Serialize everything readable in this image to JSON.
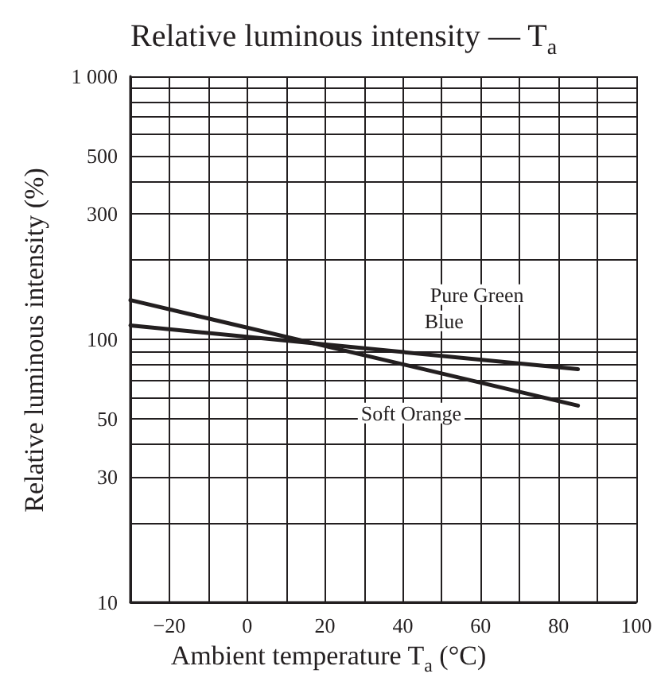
{
  "chart_data": {
    "type": "line",
    "title": "Relative luminous intensity — T$_{a}$",
    "xlabel": "Ambient temperature  T$_{a}$ (°C)",
    "ylabel": "Relative luminous intensity (%)",
    "log": "y",
    "grid": true,
    "marker": "none",
    "line_style": "solid",
    "xlim": [
      -30,
      100
    ],
    "ylim": [
      10,
      1000
    ],
    "xticks": [
      {
        "value": -30,
        "label": null
      },
      {
        "value": -20,
        "label": "−20"
      },
      {
        "value": -10,
        "label": null
      },
      0,
      {
        "value": 10,
        "label": null
      },
      20,
      {
        "value": 30,
        "label": null
      },
      40,
      {
        "value": 50,
        "label": null
      },
      60,
      {
        "value": 70,
        "label": null
      },
      80,
      {
        "value": 90,
        "label": null
      },
      100
    ],
    "yticks": [
      10,
      {
        "value": 20,
        "label": null
      },
      30,
      {
        "value": 40,
        "label": null
      },
      50,
      {
        "value": 60,
        "label": null
      },
      {
        "value": 70,
        "label": null
      },
      {
        "value": 80,
        "label": null
      },
      {
        "value": 90,
        "label": null
      },
      100,
      {
        "value": 200,
        "label": null
      },
      300,
      {
        "value": 400,
        "label": null
      },
      500,
      {
        "value": 600,
        "label": null
      },
      {
        "value": 700,
        "label": null
      },
      {
        "value": 800,
        "label": null
      },
      {
        "value": 900,
        "label": null
      },
      {
        "value": 1000,
        "label": "1 000"
      }
    ],
    "x": [
      -30,
      85
    ],
    "series": [
      {
        "color": "#231f20",
        "values": [
          113,
          77
        ]
      },
      {
        "color": "#231f20",
        "values": [
          141,
          56
        ]
      }
    ],
    "annotations": [
      "Pure Green",
      "Blue",
      "Soft Orange"
    ]
  }
}
